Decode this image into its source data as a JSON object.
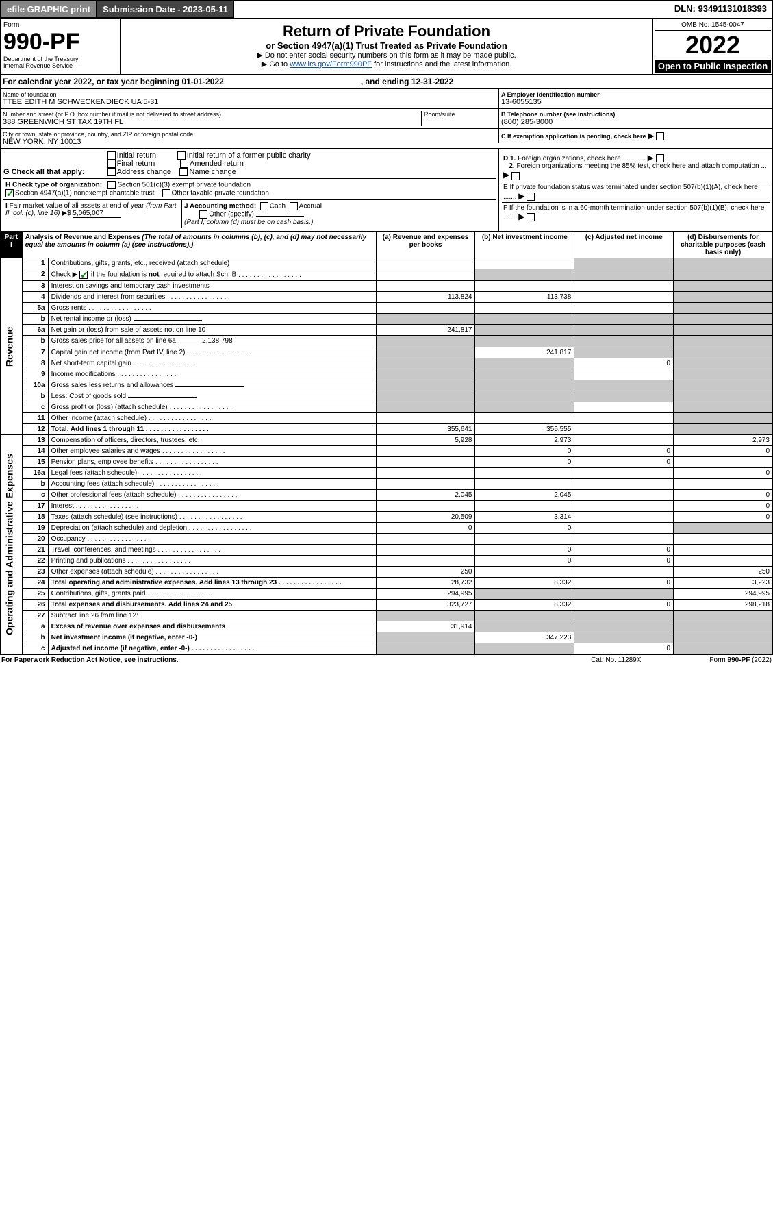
{
  "header": {
    "efile": "efile GRAPHIC print",
    "submission": "Submission Date - 2023-05-11",
    "dln": "DLN: 93491131018393",
    "form": "Form",
    "num": "990-PF",
    "dept": "Department of the Treasury",
    "irs": "Internal Revenue Service",
    "title": "Return of Private Foundation",
    "subtitle": "or Section 4947(a)(1) Trust Treated as Private Foundation",
    "note1": "▶ Do not enter social security numbers on this form as it may be made public.",
    "note2": "▶ Go to ",
    "link": "www.irs.gov/Form990PF",
    "note2b": " for instructions and the latest information.",
    "omb": "OMB No. 1545-0047",
    "year": "2022",
    "open": "Open to Public Inspection"
  },
  "cal": {
    "text": "For calendar year 2022, or tax year beginning 01-01-2022",
    "end": ", and ending 12-31-2022"
  },
  "entity": {
    "name_lbl": "Name of foundation",
    "name": "TTEE EDITH M SCHWECKENDIECK UA 5-31",
    "addr_lbl": "Number and street (or P.O. box number if mail is not delivered to street address)",
    "addr": "388 GREENWICH ST TAX 19TH FL",
    "room_lbl": "Room/suite",
    "city_lbl": "City or town, state or province, country, and ZIP or foreign postal code",
    "city": "NEW YORK, NY  10013",
    "ein_lbl": "A Employer identification number",
    "ein": "13-6055135",
    "tel_lbl": "B Telephone number (see instructions)",
    "tel": "(800) 285-3000",
    "c_lbl": "C If exemption application is pending, check here",
    "d1": "D 1. Foreign organizations, check here.............",
    "d2": "2. Foreign organizations meeting the 85% test, check here and attach computation ...",
    "e": "E  If private foundation status was terminated under section 507(b)(1)(A), check here .......",
    "f": "F  If the foundation is in a 60-month termination under section 507(b)(1)(B), check here ......."
  },
  "G": {
    "lbl": "G Check all that apply:",
    "opts": [
      "Initial return",
      "Final return",
      "Address change",
      "Initial return of a former public charity",
      "Amended return",
      "Name change"
    ]
  },
  "H": {
    "lbl": "H Check type of organization:",
    "o1": "Section 501(c)(3) exempt private foundation",
    "o2": "Section 4947(a)(1) nonexempt charitable trust",
    "o3": "Other taxable private foundation"
  },
  "I": {
    "lbl": "I Fair market value of all assets at end of year (from Part II, col. (c), line 16) ▶$ ",
    "val": "5,065,007"
  },
  "J": {
    "lbl": "J Accounting method:",
    "o1": "Cash",
    "o2": "Accrual",
    "o3": "Other (specify)",
    "note": "(Part I, column (d) must be on cash basis.)"
  },
  "part1": {
    "tag": "Part I",
    "title": "Analysis of Revenue and Expenses",
    "note": " (The total of amounts in columns (b), (c), and (d) may not necessarily equal the amounts in column (a) (see instructions).)",
    "cols": {
      "a": "(a) Revenue and expenses per books",
      "b": "(b) Net investment income",
      "c": "(c) Adjusted net income",
      "d": "(d) Disbursements for charitable purposes (cash basis only)"
    }
  },
  "sections": {
    "rev": "Revenue",
    "oae": "Operating and Administrative Expenses"
  },
  "rows": [
    {
      "n": "1",
      "d": "Contributions, gifts, grants, etc., received (attach schedule)",
      "a": "",
      "b": "",
      "c": "s",
      "dd": "s"
    },
    {
      "n": "2",
      "d": "Check ▶ ☑ if the foundation is not required to attach Sch. B",
      "dots": true,
      "a": "",
      "b": "s",
      "c": "s",
      "dd": "s"
    },
    {
      "n": "3",
      "d": "Interest on savings and temporary cash investments",
      "a": "",
      "b": "",
      "c": "",
      "dd": "s"
    },
    {
      "n": "4",
      "d": "Dividends and interest from securities",
      "dots": true,
      "a": "113,824",
      "b": "113,738",
      "c": "",
      "dd": "s"
    },
    {
      "n": "5a",
      "d": "Gross rents",
      "dots": true,
      "a": "",
      "b": "",
      "c": "",
      "dd": "s"
    },
    {
      "n": "b",
      "d": "Net rental income or (loss)",
      "ul": true,
      "a": "s",
      "b": "s",
      "c": "s",
      "dd": "s"
    },
    {
      "n": "6a",
      "d": "Net gain or (loss) from sale of assets not on line 10",
      "a": "241,817",
      "b": "s",
      "c": "s",
      "dd": "s"
    },
    {
      "n": "b",
      "d": "Gross sales price for all assets on line 6a",
      "ul": "2,138,798",
      "a": "s",
      "b": "s",
      "c": "s",
      "dd": "s"
    },
    {
      "n": "7",
      "d": "Capital gain net income (from Part IV, line 2)",
      "dots": true,
      "a": "s",
      "b": "241,817",
      "c": "s",
      "dd": "s"
    },
    {
      "n": "8",
      "d": "Net short-term capital gain",
      "dots": true,
      "a": "s",
      "b": "s",
      "c": "0",
      "dd": "s"
    },
    {
      "n": "9",
      "d": "Income modifications",
      "dots": true,
      "a": "s",
      "b": "s",
      "c": "",
      "dd": "s"
    },
    {
      "n": "10a",
      "d": "Gross sales less returns and allowances",
      "ul": true,
      "a": "s",
      "b": "s",
      "c": "s",
      "dd": "s"
    },
    {
      "n": "b",
      "d": "Less: Cost of goods sold",
      "dots": true,
      "ul": true,
      "a": "s",
      "b": "s",
      "c": "s",
      "dd": "s"
    },
    {
      "n": "c",
      "d": "Gross profit or (loss) (attach schedule)",
      "dots": true,
      "a": "s",
      "b": "s",
      "c": "",
      "dd": "s"
    },
    {
      "n": "11",
      "d": "Other income (attach schedule)",
      "dots": true,
      "a": "",
      "b": "",
      "c": "",
      "dd": "s"
    },
    {
      "n": "12",
      "d": "Total. Add lines 1 through 11",
      "dots": true,
      "bold": true,
      "a": "355,641",
      "b": "355,555",
      "c": "",
      "dd": "s"
    },
    {
      "n": "13",
      "d": "Compensation of officers, directors, trustees, etc.",
      "a": "5,928",
      "b": "2,973",
      "c": "",
      "dd": "2,973"
    },
    {
      "n": "14",
      "d": "Other employee salaries and wages",
      "dots": true,
      "a": "",
      "b": "0",
      "c": "0",
      "dd": "0"
    },
    {
      "n": "15",
      "d": "Pension plans, employee benefits",
      "dots": true,
      "a": "",
      "b": "0",
      "c": "0",
      "dd": ""
    },
    {
      "n": "16a",
      "d": "Legal fees (attach schedule)",
      "dots": true,
      "a": "",
      "b": "",
      "c": "",
      "dd": "0"
    },
    {
      "n": "b",
      "d": "Accounting fees (attach schedule)",
      "dots": true,
      "a": "",
      "b": "",
      "c": "",
      "dd": ""
    },
    {
      "n": "c",
      "d": "Other professional fees (attach schedule)",
      "dots": true,
      "a": "2,045",
      "b": "2,045",
      "c": "",
      "dd": "0"
    },
    {
      "n": "17",
      "d": "Interest",
      "dots": true,
      "a": "",
      "b": "",
      "c": "",
      "dd": "0"
    },
    {
      "n": "18",
      "d": "Taxes (attach schedule) (see instructions)",
      "dots": true,
      "a": "20,509",
      "b": "3,314",
      "c": "",
      "dd": "0"
    },
    {
      "n": "19",
      "d": "Depreciation (attach schedule) and depletion",
      "dots": true,
      "a": "0",
      "b": "0",
      "c": "",
      "dd": "s"
    },
    {
      "n": "20",
      "d": "Occupancy",
      "dots": true,
      "a": "",
      "b": "",
      "c": "",
      "dd": ""
    },
    {
      "n": "21",
      "d": "Travel, conferences, and meetings",
      "dots": true,
      "a": "",
      "b": "0",
      "c": "0",
      "dd": ""
    },
    {
      "n": "22",
      "d": "Printing and publications",
      "dots": true,
      "a": "",
      "b": "0",
      "c": "0",
      "dd": ""
    },
    {
      "n": "23",
      "d": "Other expenses (attach schedule)",
      "dots": true,
      "a": "250",
      "b": "",
      "c": "",
      "dd": "250"
    },
    {
      "n": "24",
      "d": "Total operating and administrative expenses. Add lines 13 through 23",
      "dots": true,
      "bold": true,
      "a": "28,732",
      "b": "8,332",
      "c": "0",
      "dd": "3,223"
    },
    {
      "n": "25",
      "d": "Contributions, gifts, grants paid",
      "dots": true,
      "a": "294,995",
      "b": "s",
      "c": "s",
      "dd": "294,995"
    },
    {
      "n": "26",
      "d": "Total expenses and disbursements. Add lines 24 and 25",
      "bold": true,
      "a": "323,727",
      "b": "8,332",
      "c": "0",
      "dd": "298,218"
    },
    {
      "n": "27",
      "d": "Subtract line 26 from line 12:",
      "a": "s",
      "b": "s",
      "c": "s",
      "dd": "s"
    },
    {
      "n": "a",
      "d": "Excess of revenue over expenses and disbursements",
      "bold": true,
      "a": "31,914",
      "b": "s",
      "c": "s",
      "dd": "s"
    },
    {
      "n": "b",
      "d": "Net investment income (if negative, enter -0-)",
      "bold": true,
      "a": "s",
      "b": "347,223",
      "c": "s",
      "dd": "s"
    },
    {
      "n": "c",
      "d": "Adjusted net income (if negative, enter -0-)",
      "dots": true,
      "bold": true,
      "a": "s",
      "b": "s",
      "c": "0",
      "dd": "s"
    }
  ],
  "footer": {
    "l": "For Paperwork Reduction Act Notice, see instructions.",
    "m": "Cat. No. 11289X",
    "r": "Form 990-PF (2022)"
  }
}
